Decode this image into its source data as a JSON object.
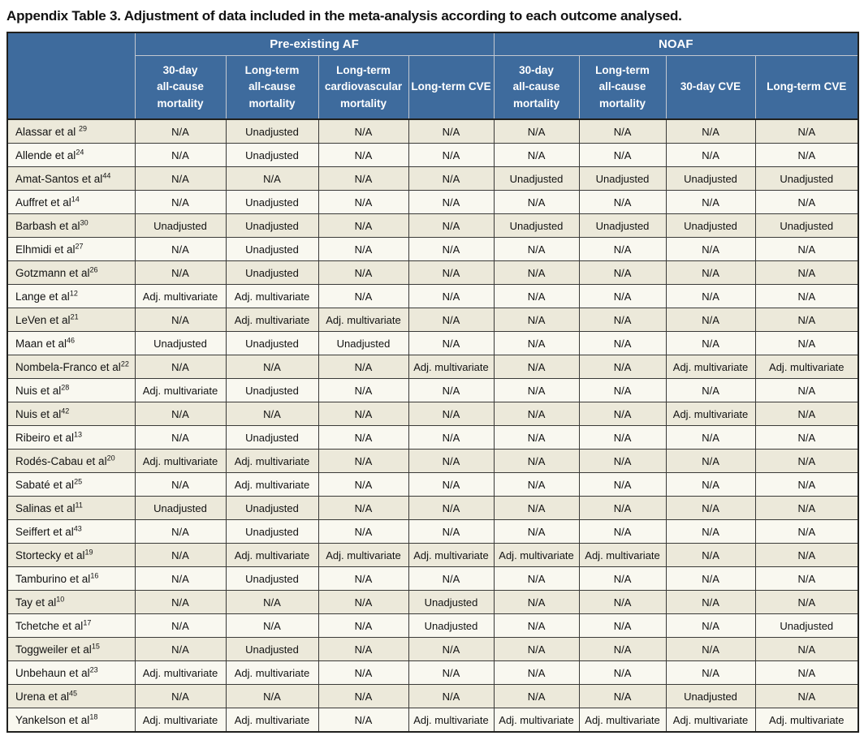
{
  "title": "Appendix Table 3. Adjustment of data included in the meta-analysis according to each outcome analysed.",
  "colors": {
    "header_blue": "#3E6B9D",
    "header_divider": "#C3C8D0",
    "border_dark": "#20201E",
    "border_inner": "#3A3A38",
    "row_beige": "#ECE9DA",
    "row_cream": "#F9F8F0"
  },
  "table": {
    "groups": [
      {
        "label": "Pre-existing AF",
        "colspan": 4
      },
      {
        "label": "NOAF",
        "colspan": 4
      }
    ],
    "columns": [
      "30-day\nall-cause\nmortality",
      "Long-term\nall-cause\nmortality",
      "Long-term\ncardiovascular\nmortality",
      "Long-term CVE",
      "30-day\nall-cause\nmortality",
      "Long-term\nall-cause\nmortality",
      "30-day CVE",
      "Long-term CVE"
    ],
    "rows": [
      {
        "study": "Alassar et al ",
        "ref": "29",
        "values": [
          "N/A",
          "Unadjusted",
          "N/A",
          "N/A",
          "N/A",
          "N/A",
          "N/A",
          "N/A"
        ]
      },
      {
        "study": "Allende et al",
        "ref": "24",
        "values": [
          "N/A",
          "Unadjusted",
          "N/A",
          "N/A",
          "N/A",
          "N/A",
          "N/A",
          "N/A"
        ]
      },
      {
        "study": "Amat-Santos et al",
        "ref": "44",
        "values": [
          "N/A",
          "N/A",
          "N/A",
          "N/A",
          "Unadjusted",
          "Unadjusted",
          "Unadjusted",
          "Unadjusted"
        ]
      },
      {
        "study": "Auffret et al",
        "ref": "14",
        "values": [
          "N/A",
          "Unadjusted",
          "N/A",
          "N/A",
          "N/A",
          "N/A",
          "N/A",
          "N/A"
        ]
      },
      {
        "study": "Barbash et al",
        "ref": "30",
        "values": [
          "Unadjusted",
          "Unadjusted",
          "N/A",
          "N/A",
          "Unadjusted",
          "Unadjusted",
          "Unadjusted",
          "Unadjusted"
        ]
      },
      {
        "study": "Elhmidi et al",
        "ref": "27",
        "values": [
          "N/A",
          "Unadjusted",
          "N/A",
          "N/A",
          "N/A",
          "N/A",
          "N/A",
          "N/A"
        ]
      },
      {
        "study": "Gotzmann et al",
        "ref": "26",
        "values": [
          "N/A",
          "Unadjusted",
          "N/A",
          "N/A",
          "N/A",
          "N/A",
          "N/A",
          "N/A"
        ]
      },
      {
        "study": "Lange et al",
        "ref": "12",
        "values": [
          "Adj. multivariate",
          "Adj. multivariate",
          "N/A",
          "N/A",
          "N/A",
          "N/A",
          "N/A",
          "N/A"
        ]
      },
      {
        "study": "LeVen et al",
        "ref": "21",
        "values": [
          "N/A",
          "Adj. multivariate",
          "Adj. multivariate",
          "N/A",
          "N/A",
          "N/A",
          "N/A",
          "N/A"
        ]
      },
      {
        "study": "Maan et al",
        "ref": "46",
        "values": [
          "Unadjusted",
          "Unadjusted",
          "Unadjusted",
          "N/A",
          "N/A",
          "N/A",
          "N/A",
          "N/A"
        ]
      },
      {
        "study": "Nombela-Franco et al",
        "ref": "22",
        "values": [
          "N/A",
          "N/A",
          "N/A",
          "Adj. multivariate",
          "N/A",
          "N/A",
          "Adj. multivariate",
          "Adj. multivariate"
        ]
      },
      {
        "study": "Nuis et al",
        "ref": "28",
        "values": [
          "Adj. multivariate",
          "Unadjusted",
          "N/A",
          "N/A",
          "N/A",
          "N/A",
          "N/A",
          "N/A"
        ]
      },
      {
        "study": "Nuis et al",
        "ref": "42",
        "values": [
          "N/A",
          "N/A",
          "N/A",
          "N/A",
          "N/A",
          "N/A",
          "Adj. multivariate",
          "N/A"
        ]
      },
      {
        "study": "Ribeiro et al",
        "ref": "13",
        "values": [
          "N/A",
          "Unadjusted",
          "N/A",
          "N/A",
          "N/A",
          "N/A",
          "N/A",
          "N/A"
        ]
      },
      {
        "study": "Rodés-Cabau et al",
        "ref": "20",
        "values": [
          "Adj. multivariate",
          "Adj. multivariate",
          "N/A",
          "N/A",
          "N/A",
          "N/A",
          "N/A",
          "N/A"
        ]
      },
      {
        "study": "Sabaté et al",
        "ref": "25",
        "values": [
          "N/A",
          "Adj. multivariate",
          "N/A",
          "N/A",
          "N/A",
          "N/A",
          "N/A",
          "N/A"
        ]
      },
      {
        "study": "Salinas et al",
        "ref": "11",
        "values": [
          "Unadjusted",
          "Unadjusted",
          "N/A",
          "N/A",
          "N/A",
          "N/A",
          "N/A",
          "N/A"
        ]
      },
      {
        "study": "Seiffert et al",
        "ref": "43",
        "values": [
          "N/A",
          "Unadjusted",
          "N/A",
          "N/A",
          "N/A",
          "N/A",
          "N/A",
          "N/A"
        ]
      },
      {
        "study": "Stortecky et al",
        "ref": "19",
        "values": [
          "N/A",
          "Adj. multivariate",
          "Adj. multivariate",
          "Adj. multivariate",
          "Adj. multivariate",
          "Adj. multivariate",
          "N/A",
          "N/A"
        ]
      },
      {
        "study": "Tamburino et al",
        "ref": "16",
        "values": [
          "N/A",
          "Unadjusted",
          "N/A",
          "N/A",
          "N/A",
          "N/A",
          "N/A",
          "N/A"
        ]
      },
      {
        "study": "Tay et al",
        "ref": "10",
        "values": [
          "N/A",
          "N/A",
          "N/A",
          "Unadjusted",
          "N/A",
          "N/A",
          "N/A",
          "N/A"
        ]
      },
      {
        "study": "Tchetche et al",
        "ref": "17",
        "values": [
          "N/A",
          "N/A",
          "N/A",
          "Unadjusted",
          "N/A",
          "N/A",
          "N/A",
          "Unadjusted"
        ]
      },
      {
        "study": "Toggweiler et al",
        "ref": "15",
        "values": [
          "N/A",
          "Unadjusted",
          "N/A",
          "N/A",
          "N/A",
          "N/A",
          "N/A",
          "N/A"
        ]
      },
      {
        "study": "Unbehaun et al",
        "ref": "23",
        "values": [
          "Adj. multivariate",
          "Adj. multivariate",
          "N/A",
          "N/A",
          "N/A",
          "N/A",
          "N/A",
          "N/A"
        ]
      },
      {
        "study": "Urena et al",
        "ref": "45",
        "values": [
          "N/A",
          "N/A",
          "N/A",
          "N/A",
          "N/A",
          "N/A",
          "Unadjusted",
          "N/A"
        ]
      },
      {
        "study": "Yankelson et al",
        "ref": "18",
        "values": [
          "Adj. multivariate",
          "Adj. multivariate",
          "N/A",
          "Adj. multivariate",
          "Adj. multivariate",
          "Adj. multivariate",
          "Adj. multivariate",
          "Adj. multivariate"
        ]
      }
    ]
  }
}
